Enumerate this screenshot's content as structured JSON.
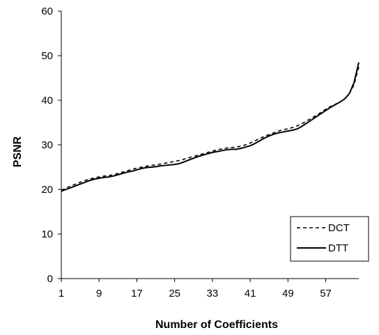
{
  "chart_data": {
    "type": "line",
    "title": "",
    "xlabel": "Number of Coefficients",
    "ylabel": "PSNR",
    "xlim": [
      1,
      64
    ],
    "ylim": [
      0,
      60
    ],
    "x_ticks": [
      1,
      9,
      17,
      25,
      33,
      41,
      49,
      57
    ],
    "y_ticks": [
      0,
      10,
      20,
      30,
      40,
      50,
      60
    ],
    "grid": false,
    "legend_position": "bottom-right",
    "x": [
      1,
      2,
      3,
      4,
      5,
      6,
      7,
      8,
      9,
      10,
      11,
      12,
      13,
      14,
      15,
      16,
      17,
      18,
      19,
      20,
      21,
      22,
      23,
      24,
      25,
      26,
      27,
      28,
      29,
      30,
      31,
      32,
      33,
      34,
      35,
      36,
      37,
      38,
      39,
      40,
      41,
      42,
      43,
      44,
      45,
      46,
      47,
      48,
      49,
      50,
      51,
      52,
      53,
      54,
      55,
      56,
      57,
      58,
      59,
      60,
      61,
      62,
      63,
      64
    ],
    "series": [
      {
        "name": "DCT",
        "style": "dashed",
        "color": "#000000",
        "values": [
          19.8,
          20.3,
          20.8,
          21.2,
          21.6,
          22.0,
          22.3,
          22.6,
          22.8,
          23.0,
          23.1,
          23.3,
          23.6,
          23.9,
          24.2,
          24.5,
          24.8,
          25.0,
          25.2,
          25.4,
          25.5,
          25.7,
          25.9,
          26.1,
          26.3,
          26.5,
          26.8,
          27.1,
          27.4,
          27.7,
          28.0,
          28.3,
          28.6,
          28.9,
          29.1,
          29.3,
          29.4,
          29.5,
          29.7,
          30.0,
          30.4,
          30.9,
          31.4,
          31.9,
          32.3,
          32.7,
          33.1,
          33.4,
          33.6,
          33.9,
          34.3,
          34.8,
          35.4,
          36.0,
          36.6,
          37.3,
          38.0,
          38.6,
          39.1,
          39.6,
          40.3,
          41.5,
          43.5,
          47.5
        ]
      },
      {
        "name": "DTT",
        "style": "solid",
        "color": "#000000",
        "values": [
          19.6,
          20.0,
          20.4,
          20.8,
          21.2,
          21.6,
          22.0,
          22.3,
          22.5,
          22.7,
          22.8,
          23.0,
          23.3,
          23.6,
          23.9,
          24.1,
          24.4,
          24.7,
          24.9,
          25.0,
          25.1,
          25.3,
          25.4,
          25.5,
          25.6,
          25.8,
          26.2,
          26.6,
          27.0,
          27.4,
          27.7,
          28.0,
          28.3,
          28.5,
          28.7,
          28.9,
          29.0,
          29.0,
          29.2,
          29.5,
          29.8,
          30.3,
          30.9,
          31.5,
          32.0,
          32.4,
          32.7,
          32.9,
          33.1,
          33.3,
          33.6,
          34.2,
          34.9,
          35.6,
          36.3,
          37.0,
          37.7,
          38.4,
          39.0,
          39.6,
          40.3,
          41.5,
          44.0,
          48.5
        ]
      }
    ]
  }
}
